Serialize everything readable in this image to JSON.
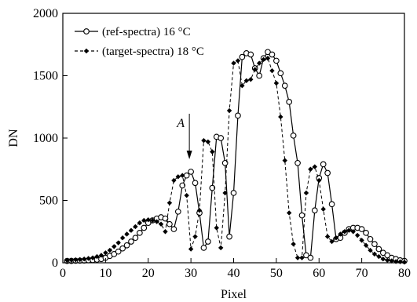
{
  "chart_data": {
    "type": "line",
    "title": "",
    "xlabel": "Pixel",
    "ylabel": "DN",
    "xlim": [
      0,
      80
    ],
    "ylim": [
      0,
      2000
    ],
    "xticks": [
      0,
      10,
      20,
      30,
      40,
      50,
      60,
      70,
      80
    ],
    "yticks": [
      0,
      500,
      1000,
      1500,
      2000
    ],
    "grid": false,
    "legend_position": "top-left",
    "annotation": {
      "text": "A",
      "x": 30
    },
    "series": [
      {
        "name": "(ref-spectra) 16 °C",
        "style": "solid",
        "marker": "open-circle",
        "x": [
          1,
          2,
          3,
          4,
          5,
          6,
          7,
          8,
          9,
          10,
          11,
          12,
          13,
          14,
          15,
          16,
          17,
          18,
          19,
          20,
          21,
          22,
          23,
          24,
          25,
          26,
          27,
          28,
          29,
          30,
          31,
          32,
          33,
          34,
          35,
          36,
          37,
          38,
          39,
          40,
          41,
          42,
          43,
          44,
          45,
          46,
          47,
          48,
          49,
          50,
          51,
          52,
          53,
          54,
          55,
          56,
          57,
          58,
          59,
          60,
          61,
          62,
          63,
          64,
          65,
          66,
          67,
          68,
          69,
          70,
          71,
          72,
          73,
          74,
          75,
          76,
          77,
          78,
          79,
          80
        ],
        "y": [
          15,
          15,
          16,
          17,
          18,
          20,
          22,
          25,
          30,
          40,
          55,
          70,
          90,
          115,
          140,
          170,
          200,
          240,
          280,
          320,
          340,
          355,
          365,
          355,
          310,
          270,
          410,
          620,
          700,
          730,
          640,
          400,
          120,
          170,
          600,
          1010,
          1000,
          800,
          210,
          560,
          1180,
          1650,
          1680,
          1670,
          1560,
          1500,
          1640,
          1690,
          1670,
          1620,
          1520,
          1420,
          1290,
          1020,
          800,
          380,
          60,
          40,
          420,
          680,
          790,
          720,
          470,
          190,
          200,
          240,
          270,
          280,
          280,
          270,
          240,
          190,
          150,
          110,
          80,
          60,
          40,
          30,
          20,
          15
        ]
      },
      {
        "name": "(target-spectra) 18 °C",
        "style": "dashed",
        "marker": "filled-diamond",
        "x": [
          1,
          2,
          3,
          4,
          5,
          6,
          7,
          8,
          9,
          10,
          11,
          12,
          13,
          14,
          15,
          16,
          17,
          18,
          19,
          20,
          21,
          22,
          23,
          24,
          25,
          26,
          27,
          28,
          29,
          30,
          31,
          32,
          33,
          34,
          35,
          36,
          37,
          38,
          39,
          40,
          41,
          42,
          43,
          44,
          45,
          46,
          47,
          48,
          49,
          50,
          51,
          52,
          53,
          54,
          55,
          56,
          57,
          58,
          59,
          60,
          61,
          62,
          63,
          64,
          65,
          66,
          67,
          68,
          69,
          70,
          71,
          72,
          73,
          74,
          75,
          76,
          77,
          78,
          79,
          80
        ],
        "y": [
          20,
          22,
          24,
          26,
          30,
          35,
          40,
          50,
          60,
          80,
          100,
          130,
          160,
          200,
          230,
          260,
          290,
          320,
          340,
          345,
          340,
          330,
          310,
          250,
          480,
          660,
          690,
          700,
          540,
          110,
          210,
          420,
          980,
          970,
          890,
          280,
          120,
          560,
          1220,
          1600,
          1620,
          1420,
          1460,
          1470,
          1550,
          1600,
          1630,
          1640,
          1540,
          1440,
          1170,
          820,
          400,
          150,
          40,
          40,
          560,
          750,
          770,
          660,
          430,
          210,
          170,
          200,
          230,
          250,
          260,
          250,
          220,
          180,
          140,
          100,
          70,
          50,
          30,
          20,
          15,
          10,
          8,
          5
        ]
      }
    ]
  }
}
